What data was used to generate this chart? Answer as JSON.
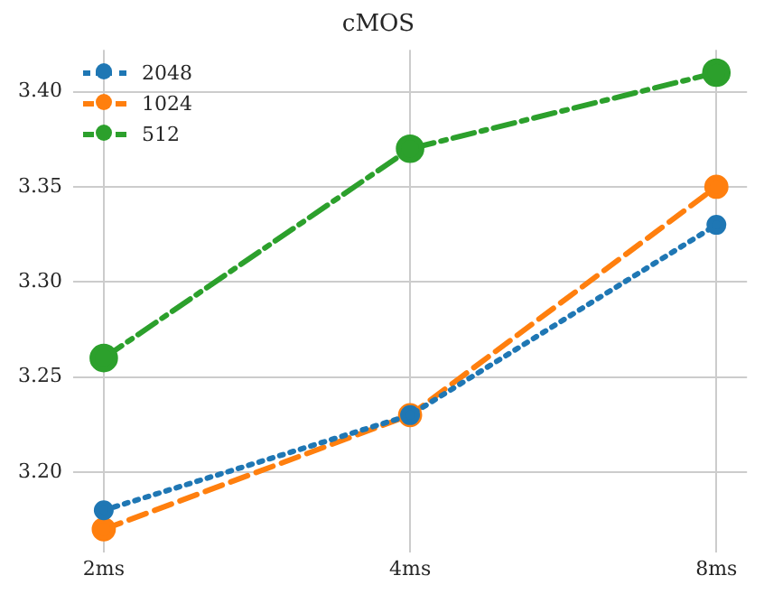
{
  "chart_data": {
    "type": "line",
    "title": "cMOS",
    "categories": [
      "2ms",
      "4ms",
      "8ms"
    ],
    "series": [
      {
        "name": "2048",
        "color": "#1f77b4",
        "values": [
          3.18,
          3.23,
          3.33
        ],
        "line_style": "dotted"
      },
      {
        "name": "1024",
        "color": "#ff7f0e",
        "values": [
          3.17,
          3.23,
          3.35
        ],
        "line_style": "dashed"
      },
      {
        "name": "512",
        "color": "#2ca02c",
        "values": [
          3.26,
          3.37,
          3.41
        ],
        "line_style": "dashdot"
      }
    ],
    "ylim": [
      3.158,
      3.422
    ],
    "yticks": [
      {
        "value": 3.2,
        "label": "3.20"
      },
      {
        "value": 3.25,
        "label": "3.25"
      },
      {
        "value": 3.3,
        "label": "3.30"
      },
      {
        "value": 3.35,
        "label": "3.35"
      },
      {
        "value": 3.4,
        "label": "3.40"
      }
    ],
    "grid": true,
    "legend": "top left",
    "marker": "circle"
  }
}
